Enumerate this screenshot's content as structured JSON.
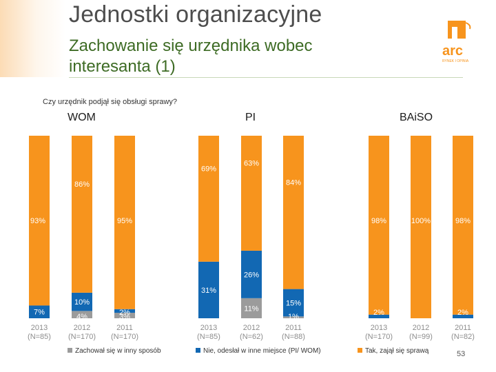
{
  "header": {
    "title": "Jednostki organizacyjne",
    "subtitle": "Zachowanie się urzędnika wobec interesanta (1)",
    "logo_text": "arc",
    "logo_tagline": "RYNEK I OPINIA"
  },
  "question": "Czy urzędnik podjął się obsługi sprawy?",
  "page_number": "53",
  "colors": {
    "tak": "#f7941d",
    "nie": "#1268b3",
    "inny": "#9b9b9b",
    "logo": "#f7941d",
    "title": "#4d4d4d",
    "subtitle": "#3d6b24"
  },
  "chart_data": {
    "type": "bar",
    "stacked": true,
    "percent": true,
    "question": "Czy urzędnik podjął się obsługi sprawy?",
    "ylim": [
      0,
      100
    ],
    "legend_position": "bottom",
    "series": [
      {
        "key": "inny",
        "name": "Zachował się w inny sposób"
      },
      {
        "key": "nie",
        "name": "Nie, odesłał w inne miejsce (PI/ WOM)"
      },
      {
        "key": "tak",
        "name": "Tak, zajął się sprawą"
      }
    ],
    "groups": [
      {
        "name": "WOM",
        "bars": [
          {
            "year": "2013",
            "n": "(N=85)",
            "inny": 0,
            "nie": 7,
            "tak": 93,
            "labels": {
              "inny": "",
              "nie": "7%",
              "tak": "93%"
            }
          },
          {
            "year": "2012",
            "n": "(N=170)",
            "inny": 4,
            "nie": 10,
            "tak": 86,
            "labels": {
              "inny": "4%",
              "nie": "10%",
              "tak": "86%"
            }
          },
          {
            "year": "2011",
            "n": "(N=170)",
            "inny": 3,
            "nie": 2,
            "tak": 95,
            "labels": {
              "inny": "3%",
              "nie": "2%",
              "tak": "95%"
            }
          }
        ]
      },
      {
        "name": "PI",
        "bars": [
          {
            "year": "2013",
            "n": "(N=85)",
            "inny": 0,
            "nie": 31,
            "tak": 69,
            "labels": {
              "inny": "",
              "nie": "31%",
              "tak": "69%"
            }
          },
          {
            "year": "2012",
            "n": "(N=62)",
            "inny": 11,
            "nie": 26,
            "tak": 63,
            "labels": {
              "inny": "11%",
              "nie": "26%",
              "tak": "63%"
            }
          },
          {
            "year": "2011",
            "n": "(N=88)",
            "inny": 1,
            "nie": 15,
            "tak": 84,
            "labels": {
              "inny": "1%",
              "nie": "15%",
              "tak": "84%"
            }
          }
        ]
      },
      {
        "name": "BAiSO",
        "bars": [
          {
            "year": "2013",
            "n": "(N=170)",
            "inny": 0,
            "nie": 2,
            "tak": 98,
            "labels": {
              "inny": "",
              "nie": "2%",
              "tak": "98%"
            }
          },
          {
            "year": "2012",
            "n": "(N=99)",
            "inny": 0,
            "nie": 0,
            "tak": 100,
            "labels": {
              "inny": "",
              "nie": "",
              "tak": "100%"
            }
          },
          {
            "year": "2011",
            "n": "(N=82)",
            "inny": 0,
            "nie": 2,
            "tak": 98,
            "labels": {
              "inny": "",
              "nie": "2%",
              "tak": "98%"
            }
          }
        ]
      }
    ]
  }
}
